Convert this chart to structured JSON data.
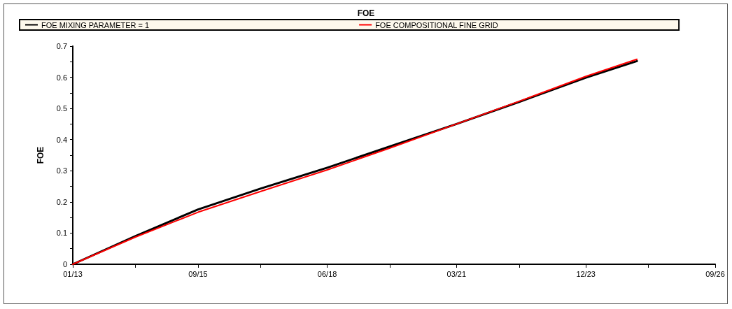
{
  "chart_data": {
    "type": "line",
    "title": "FOE",
    "ylabel": "FOE",
    "x": [
      "2013-01",
      "2014-05",
      "2015-09",
      "2017-01",
      "2018-06",
      "2019-10",
      "2021-03",
      "2022-07",
      "2023-12",
      "2025-01"
    ],
    "series": [
      {
        "name": "FOE MIXING PARAMETER = 1",
        "color": "#000000",
        "values": [
          0,
          0.09,
          0.176,
          0.243,
          0.31,
          0.378,
          0.45,
          0.521,
          0.599,
          0.652
        ]
      },
      {
        "name": "FOE COMPOSITIONAL FINE GRID",
        "color": "#ff0000",
        "values": [
          0,
          0.087,
          0.167,
          0.234,
          0.303,
          0.373,
          0.45,
          0.523,
          0.603,
          0.658
        ]
      }
    ],
    "xlim": [
      "2013-01",
      "2026-09"
    ],
    "xticks": [
      {
        "value": "2013-01",
        "label": "01/13"
      },
      {
        "value": "2014-05",
        "label": null
      },
      {
        "value": "2015-09",
        "label": "09/15"
      },
      {
        "value": "2017-01",
        "label": null
      },
      {
        "value": "2018-06",
        "label": "06/18"
      },
      {
        "value": "2019-10",
        "label": null
      },
      {
        "value": "2021-03",
        "label": "03/21"
      },
      {
        "value": "2022-07",
        "label": null
      },
      {
        "value": "2023-12",
        "label": "12/23"
      },
      {
        "value": "2025-04",
        "label": null
      },
      {
        "value": "2026-09",
        "label": "09/26"
      }
    ],
    "ylim": [
      0,
      0.7
    ],
    "yticks": [
      0,
      {
        "value": 0.05,
        "label": null
      },
      0.1,
      {
        "value": 0.15,
        "label": null
      },
      0.2,
      {
        "value": 0.25,
        "label": null
      },
      0.3,
      {
        "value": 0.35,
        "label": null
      },
      0.4,
      {
        "value": 0.45,
        "label": null
      },
      0.5,
      {
        "value": 0.55,
        "label": null
      },
      0.6,
      {
        "value": 0.65,
        "label": null
      },
      0.7
    ],
    "grid": false,
    "legend": "top",
    "marker": "none",
    "line_style": "solid"
  }
}
